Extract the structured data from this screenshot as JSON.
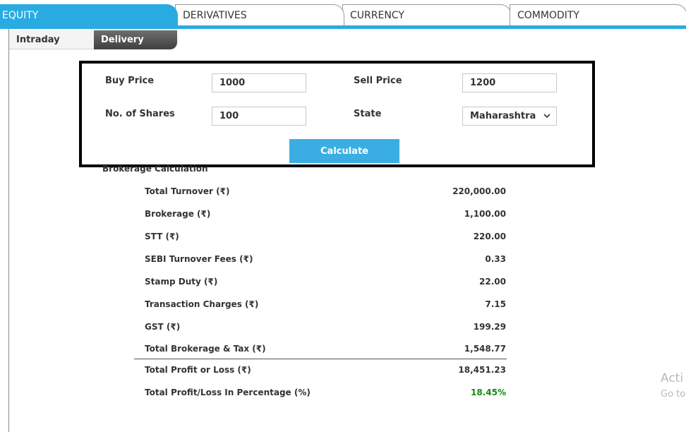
{
  "tabs": [
    {
      "label": "EQUITY",
      "active": true
    },
    {
      "label": "DERIVATIVES",
      "active": false
    },
    {
      "label": "CURRENCY",
      "active": false
    },
    {
      "label": "COMMODITY",
      "active": false
    }
  ],
  "subtabs": {
    "intraday": "Intraday",
    "delivery": "Delivery",
    "active": "Delivery"
  },
  "form": {
    "buy_price_label": "Buy Price",
    "buy_price_value": "1000",
    "sell_price_label": "Sell Price",
    "sell_price_value": "1200",
    "shares_label": "No. of Shares",
    "shares_value": "100",
    "state_label": "State",
    "state_value": "Maharashtra",
    "calculate_label": "Calculate"
  },
  "results": {
    "title": "Brokerage Calculation",
    "rows": [
      {
        "label": "Total Turnover (₹)",
        "value": "220,000.00"
      },
      {
        "label": "Brokerage (₹)",
        "value": "1,100.00"
      },
      {
        "label": "STT (₹)",
        "value": "220.00"
      },
      {
        "label": "SEBI Turnover Fees (₹)",
        "value": "0.33"
      },
      {
        "label": "Stamp Duty (₹)",
        "value": "22.00"
      },
      {
        "label": "Transaction Charges (₹)",
        "value": "7.15"
      },
      {
        "label": "GST (₹)",
        "value": "199.29"
      },
      {
        "label": "Total Brokerage & Tax (₹)",
        "value": "1,548.77"
      },
      {
        "label": "Total Profit or Loss (₹)",
        "value": "18,451.23"
      },
      {
        "label": "Total Profit/Loss In Percentage (%)",
        "value": "18.45%"
      }
    ]
  },
  "colors": {
    "accent": "#29abe2",
    "profit": "#128a12",
    "frame": "#000000"
  },
  "watermark": {
    "line1": "Acti",
    "line2": "Go to"
  }
}
